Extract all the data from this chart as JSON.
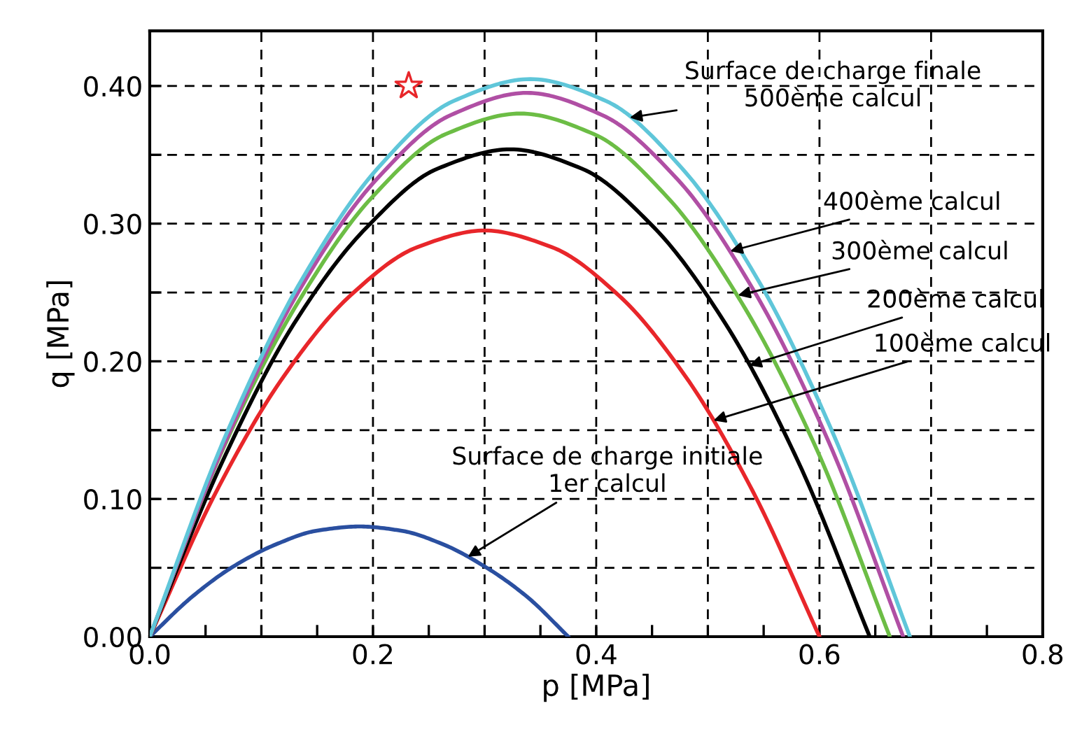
{
  "chart_data": {
    "type": "line",
    "xlabel": "p [MPa]",
    "ylabel": "q [MPa]",
    "xlim": [
      0,
      0.8
    ],
    "ylim": [
      0,
      0.44
    ],
    "xticks": [
      {
        "value": 0,
        "label": "0.0"
      },
      {
        "value": 0.05,
        "label": null
      },
      {
        "value": 0.1,
        "label": null
      },
      {
        "value": 0.15,
        "label": null
      },
      {
        "value": 0.2,
        "label": "0.2"
      },
      {
        "value": 0.25,
        "label": null
      },
      {
        "value": 0.3,
        "label": null
      },
      {
        "value": 0.35,
        "label": null
      },
      {
        "value": 0.4,
        "label": "0.4"
      },
      {
        "value": 0.45,
        "label": null
      },
      {
        "value": 0.5,
        "label": null
      },
      {
        "value": 0.55,
        "label": null
      },
      {
        "value": 0.6,
        "label": "0.6"
      },
      {
        "value": 0.65,
        "label": null
      },
      {
        "value": 0.7,
        "label": null
      },
      {
        "value": 0.75,
        "label": null
      },
      {
        "value": 0.8,
        "label": "0.8"
      }
    ],
    "yticks": [
      {
        "value": 0,
        "label": "0.00"
      },
      {
        "value": 0.05,
        "label": null
      },
      {
        "value": 0.1,
        "label": "0.10"
      },
      {
        "value": 0.15,
        "label": null
      },
      {
        "value": 0.2,
        "label": "0.20"
      },
      {
        "value": 0.25,
        "label": null
      },
      {
        "value": 0.3,
        "label": "0.30"
      },
      {
        "value": 0.35,
        "label": null
      },
      {
        "value": 0.4,
        "label": "0.40"
      }
    ],
    "grid": true,
    "line_style": "solid",
    "marker": "none",
    "series": [
      {
        "color": "#2a4fa0",
        "x": [
          0,
          0.038,
          0.075,
          0.113,
          0.15,
          0.188,
          0.225,
          0.263,
          0.3,
          0.338,
          0.375
        ],
        "values": [
          0,
          0.029,
          0.051,
          0.067,
          0.077,
          0.08,
          0.077,
          0.067,
          0.051,
          0.029,
          0
        ]
      },
      {
        "color": "#e8262a",
        "x": [
          0,
          0.06,
          0.12,
          0.18,
          0.24,
          0.3,
          0.36,
          0.42,
          0.48,
          0.54,
          0.6
        ],
        "values": [
          0,
          0.106,
          0.189,
          0.248,
          0.283,
          0.295,
          0.283,
          0.248,
          0.189,
          0.106,
          0
        ]
      },
      {
        "color": "#000000",
        "x": [
          0,
          0.065,
          0.129,
          0.194,
          0.258,
          0.323,
          0.387,
          0.452,
          0.516,
          0.581,
          0.645
        ],
        "values": [
          0,
          0.127,
          0.227,
          0.297,
          0.34,
          0.354,
          0.34,
          0.297,
          0.227,
          0.127,
          0
        ]
      },
      {
        "color": "#6cbd45",
        "x": [
          0,
          0.066,
          0.133,
          0.199,
          0.265,
          0.332,
          0.398,
          0.464,
          0.53,
          0.597,
          0.663
        ],
        "values": [
          0,
          0.137,
          0.243,
          0.319,
          0.365,
          0.38,
          0.365,
          0.319,
          0.243,
          0.137,
          0
        ]
      },
      {
        "color": "#b04fa4",
        "x": [
          0,
          0.068,
          0.135,
          0.203,
          0.27,
          0.338,
          0.405,
          0.473,
          0.54,
          0.608,
          0.675
        ],
        "values": [
          0,
          0.142,
          0.253,
          0.332,
          0.379,
          0.395,
          0.379,
          0.332,
          0.253,
          0.142,
          0
        ]
      },
      {
        "color": "#5fc6d9",
        "x": [
          0,
          0.068,
          0.136,
          0.204,
          0.272,
          0.341,
          0.409,
          0.477,
          0.545,
          0.613,
          0.681
        ],
        "values": [
          0,
          0.146,
          0.259,
          0.34,
          0.389,
          0.405,
          0.389,
          0.34,
          0.259,
          0.146,
          0
        ]
      },
      {
        "type": "scatter",
        "marker": "star",
        "color": "#e8262a",
        "x": [
          0.232
        ],
        "values": [
          0.4
        ]
      }
    ],
    "annotations": [
      {
        "text": "Surface de charge finale\n500ème calcul",
        "x": 0.43,
        "y": 0.377
      },
      {
        "text": "400ème calcul",
        "x": 0.52,
        "y": 0.28
      },
      {
        "text": "300ème calcul",
        "x": 0.527,
        "y": 0.248
      },
      {
        "text": "200ème calcul",
        "x": 0.537,
        "y": 0.197
      },
      {
        "text": "100ème calcul",
        "x": 0.505,
        "y": 0.157
      },
      {
        "text": "Surface de charge initiale\n1er calcul",
        "x": 0.285,
        "y": 0.058
      }
    ]
  }
}
